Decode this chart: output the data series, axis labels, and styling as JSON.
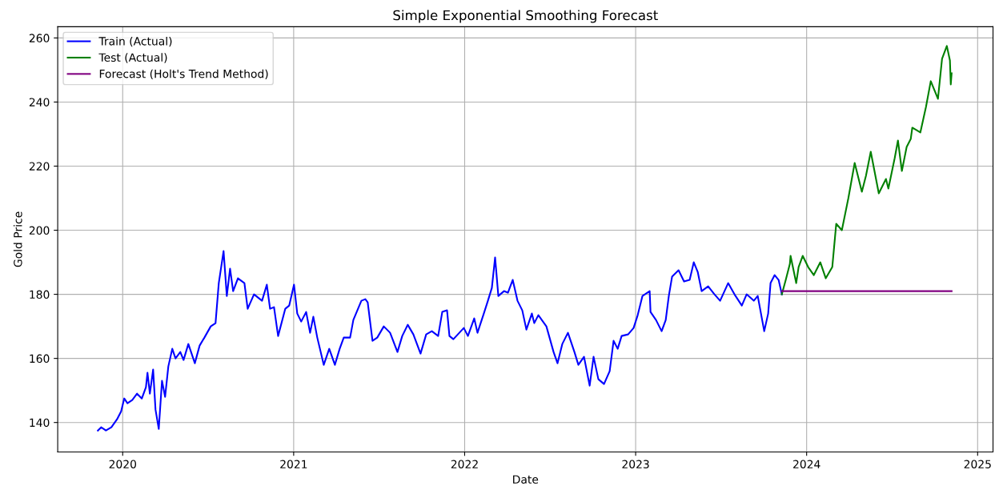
{
  "chart_data": {
    "type": "line",
    "title": "Simple Exponential Smoothing Forecast",
    "xlabel": "Date",
    "ylabel": "Gold Price",
    "xlim": [
      2019.62,
      2025.09
    ],
    "ylim": [
      130.8,
      263.5
    ],
    "xticks": [
      2020,
      2021,
      2022,
      2023,
      2024,
      2025
    ],
    "yticks": [
      140,
      160,
      180,
      200,
      220,
      240,
      260
    ],
    "grid": true,
    "legend": "top left",
    "series": [
      {
        "name": "Train (Actual)",
        "color": "#0000ff",
        "x": [
          2019.855,
          2019.874,
          2019.902,
          2019.934,
          2019.967,
          2019.991,
          2020.009,
          2020.028,
          2020.056,
          2020.084,
          2020.112,
          2020.136,
          2020.145,
          2020.159,
          2020.178,
          2020.192,
          2020.211,
          2020.23,
          2020.248,
          2020.267,
          2020.29,
          2020.309,
          2020.337,
          2020.356,
          2020.384,
          2020.422,
          2020.45,
          2020.478,
          2020.515,
          2020.543,
          2020.562,
          2020.59,
          2020.609,
          2020.628,
          2020.646,
          2020.674,
          2020.712,
          2020.731,
          2020.768,
          2020.815,
          2020.843,
          2020.862,
          2020.885,
          2020.909,
          2020.951,
          2020.974,
          2021.002,
          2021.021,
          2021.044,
          2021.073,
          2021.096,
          2021.115,
          2021.138,
          2021.176,
          2021.208,
          2021.241,
          2021.269,
          2021.293,
          2021.33,
          2021.349,
          2021.396,
          2021.419,
          2021.433,
          2021.461,
          2021.489,
          2021.527,
          2021.564,
          2021.607,
          2021.635,
          2021.667,
          2021.7,
          2021.742,
          2021.775,
          2021.808,
          2021.845,
          2021.869,
          2021.897,
          2021.911,
          2021.934,
          2021.995,
          2022.019,
          2022.056,
          2022.075,
          2022.112,
          2022.136,
          2022.159,
          2022.178,
          2022.197,
          2022.23,
          2022.253,
          2022.281,
          2022.309,
          2022.337,
          2022.361,
          2022.393,
          2022.407,
          2022.431,
          2022.478,
          2022.52,
          2022.543,
          2022.571,
          2022.604,
          2022.642,
          2022.665,
          2022.698,
          2022.731,
          2022.754,
          2022.782,
          2022.815,
          2022.848,
          2022.871,
          2022.895,
          2022.918,
          2022.956,
          2022.988,
          2023.012,
          2023.04,
          2023.082,
          2023.087,
          2023.119,
          2023.152,
          2023.176,
          2023.194,
          2023.213,
          2023.251,
          2023.283,
          2023.316,
          2023.34,
          2023.363,
          2023.386,
          2023.424,
          2023.461,
          2023.494,
          2023.541,
          2023.578,
          2023.621,
          2023.649,
          2023.691,
          2023.714,
          2023.752,
          2023.775,
          2023.789,
          2023.813,
          2023.836,
          2023.855
        ],
        "values": [
          137.5,
          138.5,
          137.5,
          138.5,
          141,
          143.5,
          147.5,
          146,
          147,
          149,
          147.5,
          151,
          155.5,
          149,
          156.5,
          144,
          138,
          153,
          148,
          157.5,
          163,
          160,
          162,
          159.5,
          164.5,
          158.5,
          164,
          166.5,
          170,
          171,
          183.5,
          193.5,
          179.5,
          188,
          181,
          185,
          183.5,
          175.5,
          180,
          178,
          183,
          175.5,
          176,
          167,
          175.5,
          176.5,
          183,
          174,
          171.5,
          174.5,
          168,
          173,
          166.5,
          158,
          163,
          158,
          163,
          166.5,
          166.5,
          172,
          178,
          178.5,
          177.5,
          165.5,
          166.5,
          170,
          168,
          162,
          167,
          170.5,
          167.5,
          161.5,
          167.5,
          168.5,
          167,
          174.5,
          175,
          167,
          166,
          169.5,
          167,
          172.5,
          168,
          174,
          178,
          182,
          191.5,
          179.5,
          181,
          180.5,
          184.5,
          178,
          175,
          169,
          174,
          171,
          173.5,
          170,
          162,
          158.5,
          164.5,
          168,
          162,
          158,
          160.5,
          151.5,
          160.5,
          153.5,
          152,
          156,
          165.5,
          163,
          167,
          167.5,
          169.5,
          173.5,
          179.5,
          181,
          174.5,
          172,
          168.5,
          172,
          179.5,
          185.5,
          187.5,
          184,
          184.5,
          190,
          187,
          181,
          182.5,
          180,
          178,
          183.5,
          180,
          176.5,
          180,
          178,
          179.5,
          168.5,
          174,
          183.5,
          186,
          184.5,
          180
        ]
      },
      {
        "name": "Test (Actual)",
        "color": "#008000",
        "x": [
          2023.855,
          2023.878,
          2023.902,
          2023.906,
          2023.939,
          2023.953,
          2023.977,
          2024.009,
          2024.042,
          2024.08,
          2024.112,
          2024.15,
          2024.173,
          2024.206,
          2024.244,
          2024.281,
          2024.323,
          2024.347,
          2024.375,
          2024.422,
          2024.464,
          2024.478,
          2024.515,
          2024.534,
          2024.557,
          2024.585,
          2024.609,
          2024.618,
          2024.665,
          2024.698,
          2024.726,
          2024.768,
          2024.792,
          2024.82,
          2024.838,
          2024.843,
          2024.848
        ],
        "values": [
          180,
          184.5,
          189.5,
          192,
          183.5,
          188.5,
          192,
          188.5,
          186,
          190,
          185,
          188.5,
          202,
          200,
          210,
          221,
          212,
          217,
          224.5,
          211.5,
          216,
          213,
          222.5,
          228,
          218.5,
          226,
          228.5,
          232,
          230.5,
          238.5,
          246.5,
          241,
          253.5,
          257.5,
          253,
          245.5,
          249
        ]
      },
      {
        "name": "Forecast (Holt's Trend Method)",
        "color": "#800080",
        "x": [
          2023.855,
          2024.848
        ],
        "values": [
          181,
          181
        ]
      }
    ]
  }
}
